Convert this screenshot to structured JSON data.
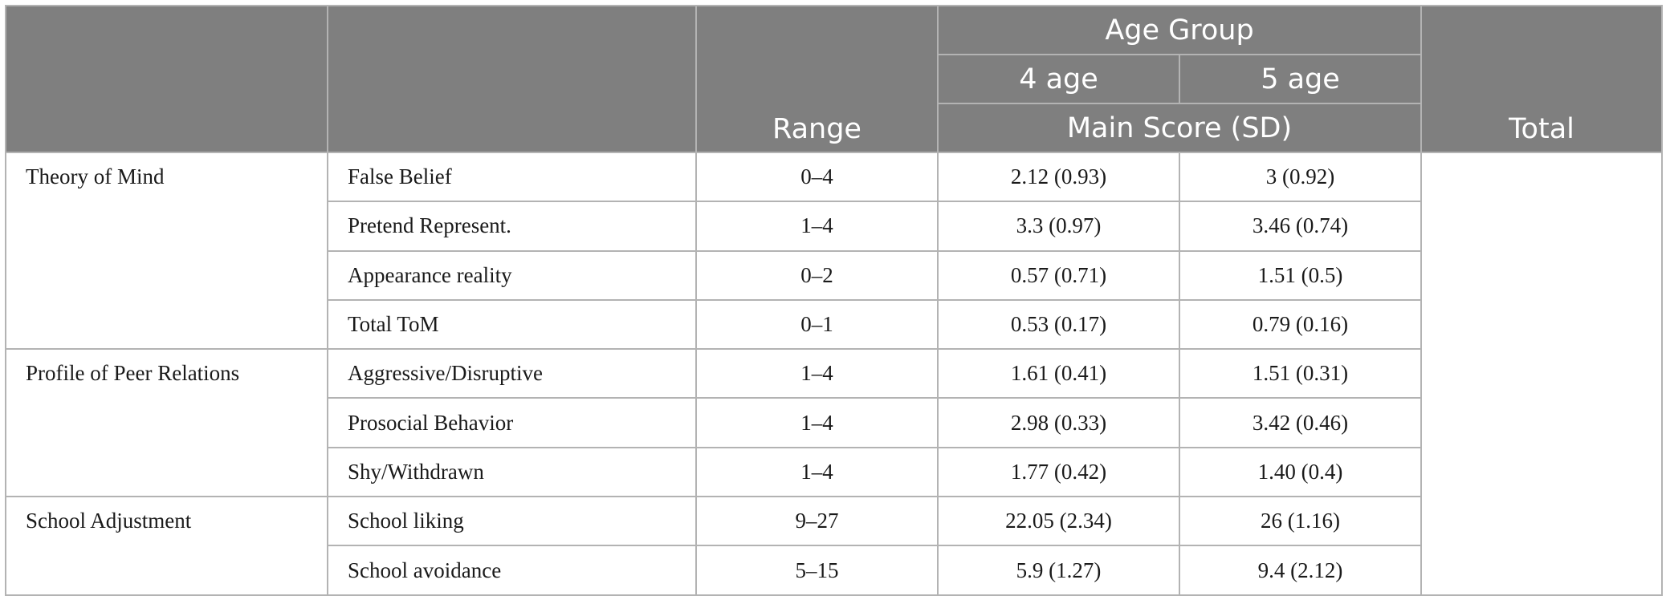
{
  "header": {
    "range": "Range",
    "age_group": "Age Group",
    "age_4": "4 age",
    "age_5": "5 age",
    "main_score": "Main Score (SD)",
    "total": "Total"
  },
  "groups": [
    {
      "label": "Theory of Mind",
      "rows": [
        {
          "measure": "False Belief",
          "range": "0–4",
          "age4": "2.12 (0.93)",
          "age5": "3 (0.92)"
        },
        {
          "measure": "Pretend Represent.",
          "range": "1–4",
          "age4": "3.3 (0.97)",
          "age5": "3.46 (0.74)"
        },
        {
          "measure": "Appearance reality",
          "range": "0–2",
          "age4": "0.57 (0.71)",
          "age5": "1.51 (0.5)"
        },
        {
          "measure": "Total ToM",
          "range": "0–1",
          "age4": "0.53 (0.17)",
          "age5": "0.79 (0.16)"
        }
      ]
    },
    {
      "label": "Profile of Peer Relations",
      "rows": [
        {
          "measure": "Aggressive/Disruptive",
          "range": "1–4",
          "age4": "1.61 (0.41)",
          "age5": "1.51 (0.31)"
        },
        {
          "measure": "Prosocial Behavior",
          "range": "1–4",
          "age4": "2.98 (0.33)",
          "age5": "3.42 (0.46)"
        },
        {
          "measure": "Shy/Withdrawn",
          "range": "1–4",
          "age4": "1.77 (0.42)",
          "age5": "1.40 (0.4)"
        }
      ]
    },
    {
      "label": "School Adjustment",
      "rows": [
        {
          "measure": "School liking",
          "range": "9–27",
          "age4": "22.05 (2.34)",
          "age5": "26 (1.16)"
        },
        {
          "measure": "School avoidance",
          "range": "5–15",
          "age4": "5.9 (1.27)",
          "age5": "9.4 (2.12)"
        }
      ]
    }
  ]
}
